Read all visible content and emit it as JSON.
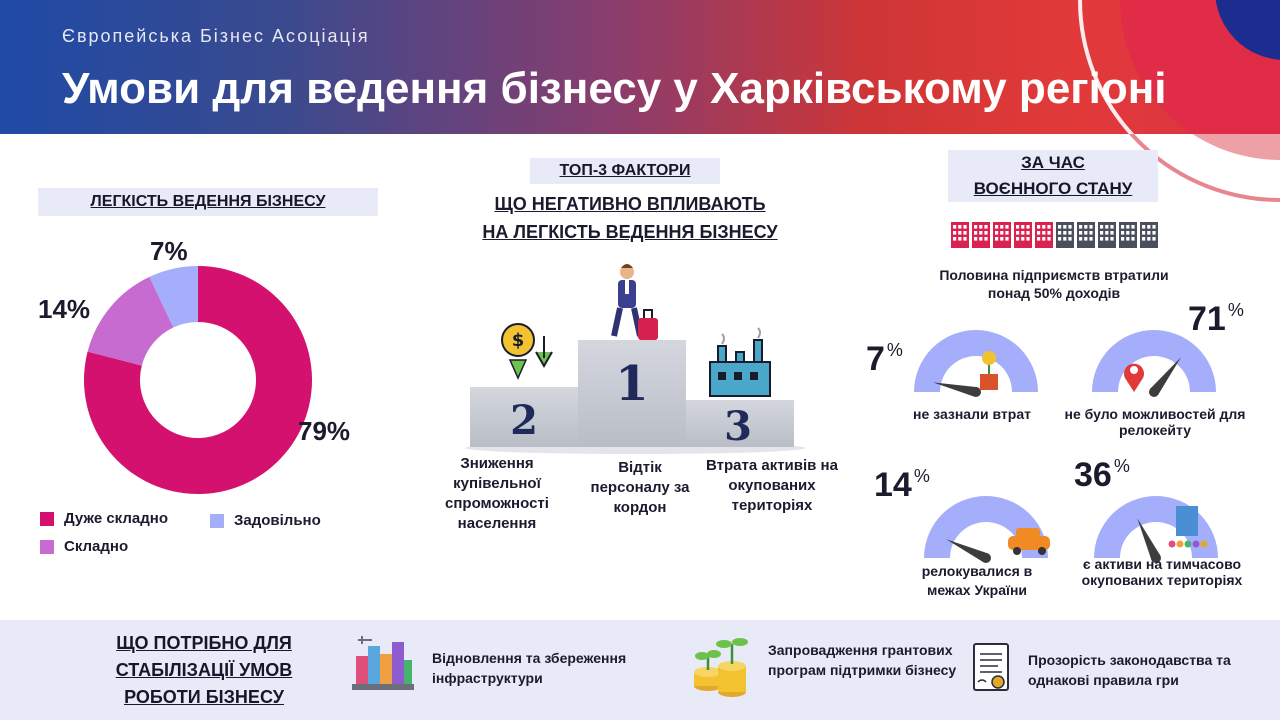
{
  "header": {
    "org": "Європейська Бізнес Асоціація",
    "title": "Умови для ведення бізнесу у Харківському регіоні"
  },
  "left": {
    "heading": "ЛЕГКІСТЬ ВЕДЕННЯ БІЗНЕСУ",
    "legend": [
      "Дуже складно",
      "Складно",
      "Задовільно"
    ]
  },
  "middle": {
    "heading_top": "ТОП-3 ФАКТОРИ",
    "heading_line1": "ЩО НЕГАТИВНО ВПЛИВАЮТЬ",
    "heading_line2": "НА ЛЕГКІСТЬ ВЕДЕННЯ БІЗНЕСУ",
    "factors": [
      {
        "rank": "1",
        "text": "Відтік персоналу за кордон"
      },
      {
        "rank": "2",
        "text": "Зниження купівельної спроможності населення"
      },
      {
        "rank": "3",
        "text": "Втрата активів на окупованих територіях"
      }
    ]
  },
  "right": {
    "heading_line1": "ЗА ЧАС",
    "heading_line2": "ВОЄННОГО СТАНУ",
    "half_caption": "Половина підприємств втратили понад 50% доходів",
    "half_icons": {
      "total": 10,
      "highlighted": 5,
      "highlight_color": "#d9224f",
      "base_color": "#4a4f5c"
    }
  },
  "chart_data": [
    {
      "type": "pie",
      "title": "ЛЕГКІСТЬ ВЕДЕННЯ БІЗНЕСУ",
      "categories": [
        "Дуже складно",
        "Складно",
        "Задовільно"
      ],
      "values": [
        79,
        14,
        7
      ],
      "labels": [
        "79%",
        "14%",
        "7%"
      ],
      "colors": [
        "#d4116e",
        "#c76bd1",
        "#a4aefa"
      ],
      "donut": true,
      "legend": "bottom"
    },
    {
      "type": "gauge",
      "title": "ЗА ЧАС ВОЄННОГО СТАНУ",
      "items": [
        {
          "value": 7,
          "number": "7",
          "unit": "%",
          "label": "не зазнали втрат"
        },
        {
          "value": 71,
          "number": "71",
          "unit": "%",
          "label": "не було можливостей для релокейту"
        },
        {
          "value": 14,
          "number": "14",
          "unit": "%",
          "label": "релокувалися в межах України"
        },
        {
          "value": 36,
          "number": "36",
          "unit": "%",
          "label": "є активи на тимчасово окупованих територіях"
        }
      ],
      "range": [
        0,
        100
      ],
      "arc_color": "#a4aefa",
      "needle_color": "#3d3d3d"
    }
  ],
  "footer": {
    "title": "ЩО ПОТРІБНО ДЛЯ СТАБІЛІЗАЦІЇ УМОВ РОБОТИ БІЗНЕСУ",
    "items": [
      {
        "icon": "city-icon",
        "text": "Відновлення та збереження інфраструктури"
      },
      {
        "icon": "coins-plant-icon",
        "text": "Запровадження грантових програм підтримки бізнесу"
      },
      {
        "icon": "document-stamp-icon",
        "text": "Прозорість законодавства та однакові правила гри"
      }
    ]
  }
}
